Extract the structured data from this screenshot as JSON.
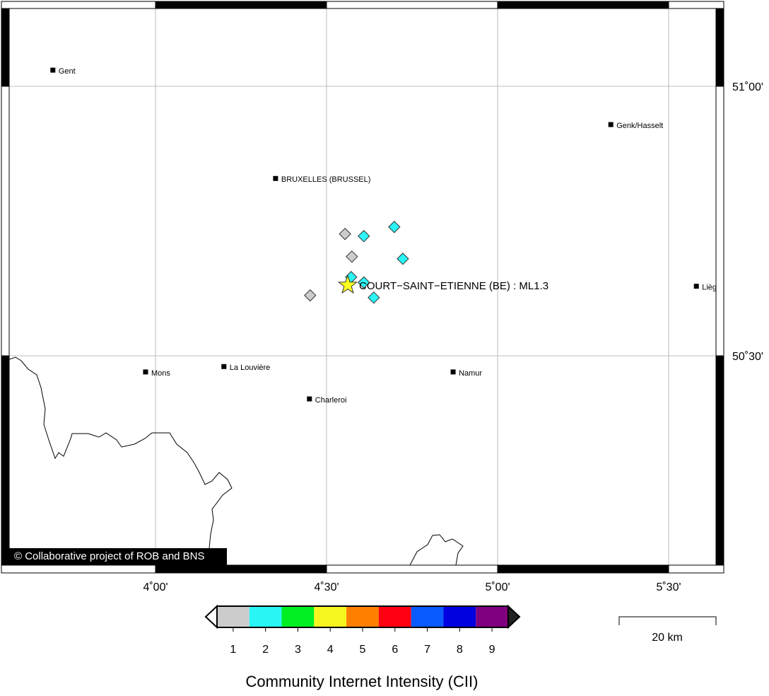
{
  "map": {
    "lon_ticks": [
      {
        "value": 4.0,
        "label": "4˚00'"
      },
      {
        "value": 4.5,
        "label": "4˚30'"
      },
      {
        "value": 5.0,
        "label": "5˚00'"
      },
      {
        "value": 5.5,
        "label": "5˚30'"
      }
    ],
    "lat_ticks": [
      {
        "value": 51.0,
        "label": "51˚00'"
      },
      {
        "value": 50.5,
        "label": "50˚30'"
      }
    ],
    "cities": [
      {
        "name": "Gent",
        "lon": 3.7,
        "lat": 51.03
      },
      {
        "name": "Genk/Hasselt",
        "lon": 5.331,
        "lat": 50.929
      },
      {
        "name": "BRUXELLES (BRUSSEL)",
        "lon": 4.351,
        "lat": 50.829
      },
      {
        "name": "Liège",
        "lon": 5.581,
        "lat": 50.629
      },
      {
        "name": "Mons",
        "lon": 3.971,
        "lat": 50.47
      },
      {
        "name": "La Louvière",
        "lon": 4.2,
        "lat": 50.48
      },
      {
        "name": "Namur",
        "lon": 4.87,
        "lat": 50.47
      },
      {
        "name": "Charleroi",
        "lon": 4.45,
        "lat": 50.42
      }
    ],
    "reports": [
      {
        "lon": 4.554,
        "lat": 50.726,
        "intensity": 1
      },
      {
        "lon": 4.574,
        "lat": 50.684,
        "intensity": 1
      },
      {
        "lon": 4.452,
        "lat": 50.612,
        "intensity": 1
      },
      {
        "lon": 4.609,
        "lat": 50.722,
        "intensity": 2
      },
      {
        "lon": 4.698,
        "lat": 50.739,
        "intensity": 2
      },
      {
        "lon": 4.723,
        "lat": 50.68,
        "intensity": 2
      },
      {
        "lon": 4.572,
        "lat": 50.646,
        "intensity": 2
      },
      {
        "lon": 4.609,
        "lat": 50.636,
        "intensity": 2
      },
      {
        "lon": 4.638,
        "lat": 50.608,
        "intensity": 2
      }
    ],
    "epicenter": {
      "label": "COURT−SAINT−ETIENNE (BE) : ML1.3",
      "lon": 4.562,
      "lat": 50.631
    },
    "copyright": "© Collaborative project of ROB and BNS",
    "legend": {
      "title": "Community Internet Intensity (CII)",
      "levels": [
        1,
        2,
        3,
        4,
        5,
        6,
        7,
        8,
        9
      ],
      "colors": [
        "#cccccc",
        "#2af5f5",
        "#00ee22",
        "#f5f520",
        "#ff7f00",
        "#ff0010",
        "#0a5aff",
        "#0000e0",
        "#800080"
      ]
    },
    "scale_bar": {
      "label": "20 km"
    }
  }
}
